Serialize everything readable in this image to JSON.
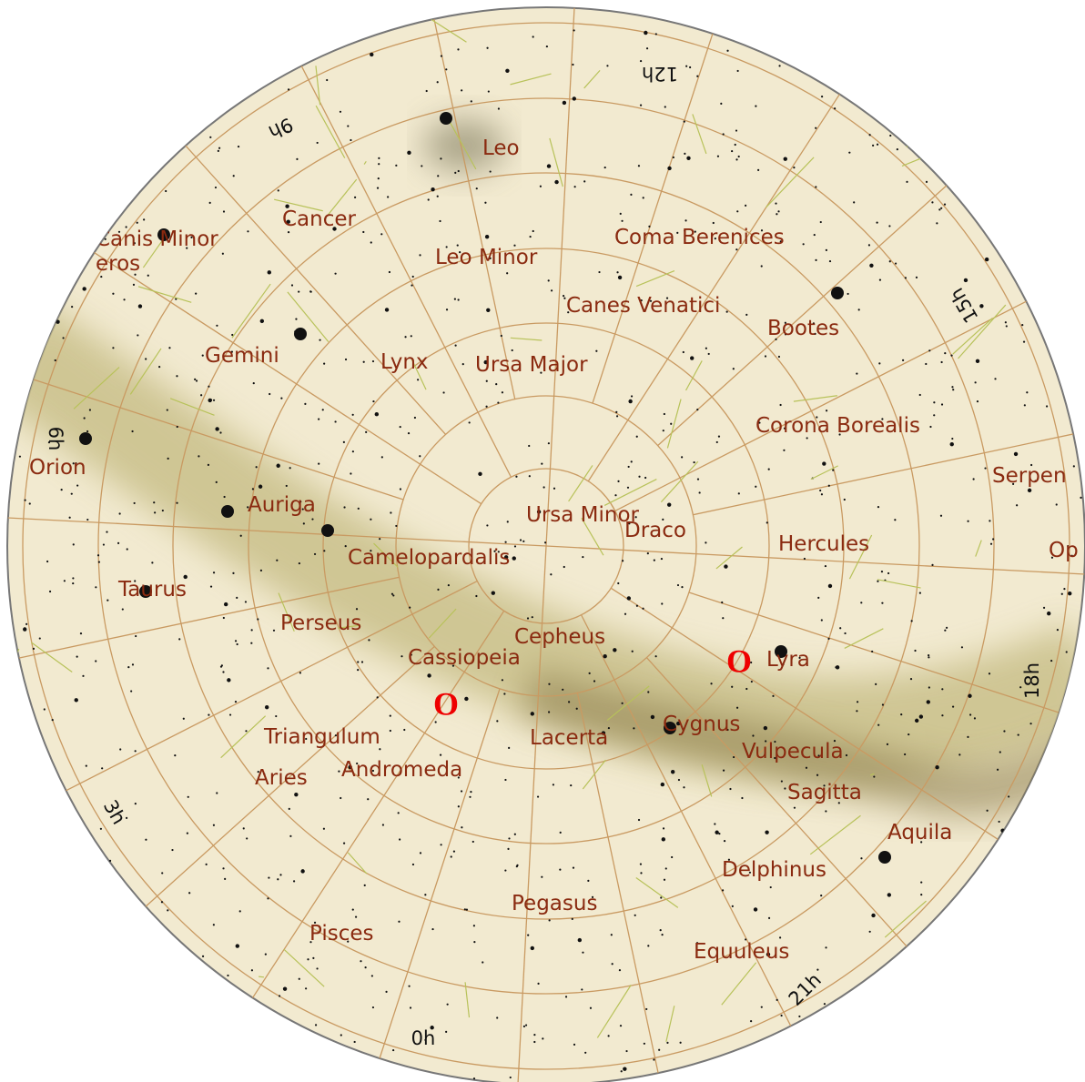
{
  "constellations": [
    "Leo",
    "Cancer",
    "Canis Minor",
    "eros",
    "Coma Berenices",
    "Leo Minor",
    "Canes Venatici",
    "Bootes",
    "Gemini",
    "Lynx",
    "Ursa Major",
    "Corona Borealis",
    "Orion",
    "Serpen",
    "Auriga",
    "Ursa Minor",
    "Draco",
    "Hercules",
    "Camelopardalis",
    "Op",
    "Taurus",
    "Perseus",
    "Cepheus",
    "Cassiopeia",
    "Lyra",
    "Triangulum",
    "Lacerta",
    "Cygnus",
    "Vulpecula",
    "Aries",
    "Andromeda",
    "Sagitta",
    "Aquila",
    "Delphinus",
    "Pegasus",
    "Pisces",
    "Equuleus"
  ],
  "hour_labels": [
    "12h",
    "15h",
    "18h",
    "21h",
    "0h",
    "3h",
    "6h",
    "9h"
  ],
  "markers": [
    "O",
    "O"
  ]
}
